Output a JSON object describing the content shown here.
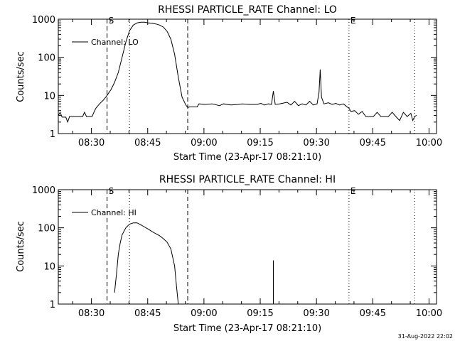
{
  "footer": {
    "date_stamp": "31-Aug-2022 22:02"
  },
  "chart_data": [
    {
      "type": "line",
      "title": "RHESSI PARTICLE_RATE Channel: LO",
      "xlabel": "Start Time (23-Apr-17 08:21:10)",
      "ylabel": "Counts/sec",
      "yscale": "log",
      "ylim": [
        1,
        1000
      ],
      "xlim": [
        "08:21:10",
        "10:02:00"
      ],
      "grid": false,
      "legend_position": "top-left",
      "x_ticks": [
        "08:30",
        "08:45",
        "09:00",
        "09:15",
        "09:30",
        "09:45",
        "10:00"
      ],
      "y_ticks": [
        "1",
        "10",
        "100",
        "1000"
      ],
      "markers": [
        {
          "time": "08:34:10",
          "style": "dashed",
          "label": "S"
        },
        {
          "time": "08:40:10",
          "style": "dotted",
          "label": ""
        },
        {
          "time": "08:55:40",
          "style": "dashed",
          "label": ""
        },
        {
          "time": "09:38:40",
          "style": "dotted",
          "label": "E"
        },
        {
          "time": "09:56:10",
          "style": "dotted",
          "label": ""
        }
      ],
      "series": [
        {
          "name": "Channel: LO",
          "points": [
            [
              "08:21:10",
              3.0
            ],
            [
              "08:21:40",
              3.6
            ],
            [
              "08:22:10",
              2.7
            ],
            [
              "08:23:10",
              2.7
            ],
            [
              "08:23:40",
              2.0
            ],
            [
              "08:24:10",
              2.8
            ],
            [
              "08:26:10",
              2.8
            ],
            [
              "08:27:40",
              2.8
            ],
            [
              "08:28:10",
              3.6
            ],
            [
              "08:28:40",
              2.8
            ],
            [
              "08:30:10",
              2.8
            ],
            [
              "08:30:40",
              3.6
            ],
            [
              "08:31:10",
              4.6
            ],
            [
              "08:32:10",
              6.0
            ],
            [
              "08:33:10",
              7.5
            ],
            [
              "08:34:10",
              10
            ],
            [
              "08:35:10",
              14
            ],
            [
              "08:36:10",
              22
            ],
            [
              "08:37:10",
              40
            ],
            [
              "08:38:10",
              100
            ],
            [
              "08:39:10",
              250
            ],
            [
              "08:40:10",
              500
            ],
            [
              "08:41:10",
              700
            ],
            [
              "08:42:10",
              800
            ],
            [
              "08:43:10",
              830
            ],
            [
              "08:44:10",
              830
            ],
            [
              "08:45:10",
              800
            ],
            [
              "08:46:10",
              780
            ],
            [
              "08:47:10",
              750
            ],
            [
              "08:48:10",
              700
            ],
            [
              "08:49:10",
              620
            ],
            [
              "08:50:10",
              480
            ],
            [
              "08:51:10",
              300
            ],
            [
              "08:52:10",
              120
            ],
            [
              "08:53:10",
              30
            ],
            [
              "08:54:10",
              9
            ],
            [
              "08:55:10",
              5.6
            ],
            [
              "08:55:40",
              4.8
            ],
            [
              "08:56:10",
              5.0
            ],
            [
              "08:58:10",
              5.0
            ],
            [
              "08:58:40",
              6.0
            ],
            [
              "09:00:10",
              5.8
            ],
            [
              "09:02:10",
              6.0
            ],
            [
              "09:04:10",
              5.4
            ],
            [
              "09:05:10",
              6.0
            ],
            [
              "09:07:10",
              5.6
            ],
            [
              "09:09:10",
              5.8
            ],
            [
              "09:10:10",
              6.0
            ],
            [
              "09:12:10",
              5.8
            ],
            [
              "09:14:10",
              5.8
            ],
            [
              "09:15:10",
              6.2
            ],
            [
              "09:16:10",
              5.6
            ],
            [
              "09:17:10",
              6.0
            ],
            [
              "09:18:00",
              5.8
            ],
            [
              "09:18:30",
              13
            ],
            [
              "09:19:00",
              5.8
            ],
            [
              "09:20:10",
              6.0
            ],
            [
              "09:22:10",
              6.6
            ],
            [
              "09:23:10",
              5.6
            ],
            [
              "09:24:10",
              7.0
            ],
            [
              "09:25:10",
              5.4
            ],
            [
              "09:26:10",
              6.0
            ],
            [
              "09:27:10",
              5.6
            ],
            [
              "09:28:10",
              7.0
            ],
            [
              "09:29:10",
              5.6
            ],
            [
              "09:30:10",
              6.0
            ],
            [
              "09:30:40",
              12
            ],
            [
              "09:31:00",
              48
            ],
            [
              "09:31:20",
              9
            ],
            [
              "09:32:00",
              6.0
            ],
            [
              "09:33:10",
              6.4
            ],
            [
              "09:34:10",
              5.8
            ],
            [
              "09:35:10",
              6.2
            ],
            [
              "09:36:10",
              5.6
            ],
            [
              "09:37:10",
              6.0
            ],
            [
              "09:38:10",
              5.0
            ],
            [
              "09:38:40",
              4.6
            ],
            [
              "09:39:10",
              3.8
            ],
            [
              "09:40:10",
              4.0
            ],
            [
              "09:41:10",
              3.2
            ],
            [
              "09:42:10",
              3.8
            ],
            [
              "09:43:10",
              2.8
            ],
            [
              "09:45:10",
              2.8
            ],
            [
              "09:46:10",
              3.6
            ],
            [
              "09:47:10",
              2.8
            ],
            [
              "09:49:10",
              2.8
            ],
            [
              "09:50:10",
              3.6
            ],
            [
              "09:51:10",
              2.8
            ],
            [
              "09:52:10",
              2.2
            ],
            [
              "09:53:10",
              3.6
            ],
            [
              "09:54:10",
              2.8
            ],
            [
              "09:55:10",
              3.4
            ],
            [
              "09:55:40",
              2.2
            ],
            [
              "09:56:10",
              2.8
            ],
            [
              "09:56:40",
              3.0
            ]
          ]
        }
      ]
    },
    {
      "type": "line",
      "title": "RHESSI PARTICLE_RATE Channel: HI",
      "xlabel": "Start Time (23-Apr-17 08:21:10)",
      "ylabel": "Counts/sec",
      "yscale": "log",
      "ylim": [
        1,
        1000
      ],
      "xlim": [
        "08:21:10",
        "10:02:00"
      ],
      "grid": false,
      "legend_position": "top-left",
      "x_ticks": [
        "08:30",
        "08:45",
        "09:00",
        "09:15",
        "09:30",
        "09:45",
        "10:00"
      ],
      "y_ticks": [
        "1",
        "10",
        "100",
        "1000"
      ],
      "markers": [
        {
          "time": "08:34:10",
          "style": "dashed",
          "label": "S"
        },
        {
          "time": "08:40:10",
          "style": "dotted",
          "label": ""
        },
        {
          "time": "08:55:40",
          "style": "dashed",
          "label": ""
        },
        {
          "time": "09:38:40",
          "style": "dotted",
          "label": "E"
        },
        {
          "time": "09:56:10",
          "style": "dotted",
          "label": ""
        }
      ],
      "series": [
        {
          "name": "Channel: HI",
          "points": [
            [
              "08:36:10",
              2.0
            ],
            [
              "08:36:40",
              6
            ],
            [
              "08:37:10",
              20
            ],
            [
              "08:37:40",
              40
            ],
            [
              "08:38:10",
              65
            ],
            [
              "08:39:10",
              100
            ],
            [
              "08:40:10",
              125
            ],
            [
              "08:41:10",
              135
            ],
            [
              "08:42:10",
              135
            ],
            [
              "08:43:10",
              120
            ],
            [
              "08:44:10",
              105
            ],
            [
              "08:45:10",
              92
            ],
            [
              "08:46:10",
              80
            ],
            [
              "08:47:10",
              70
            ],
            [
              "08:48:10",
              62
            ],
            [
              "08:49:10",
              52
            ],
            [
              "08:50:10",
              42
            ],
            [
              "08:51:10",
              28
            ],
            [
              "08:52:10",
              10
            ],
            [
              "08:52:40",
              3
            ],
            [
              "08:53:10",
              1.0
            ]
          ]
        },
        {
          "name": "",
          "points": [
            [
              "09:18:30",
              1.0
            ],
            [
              "09:18:30",
              14
            ]
          ]
        }
      ]
    }
  ]
}
